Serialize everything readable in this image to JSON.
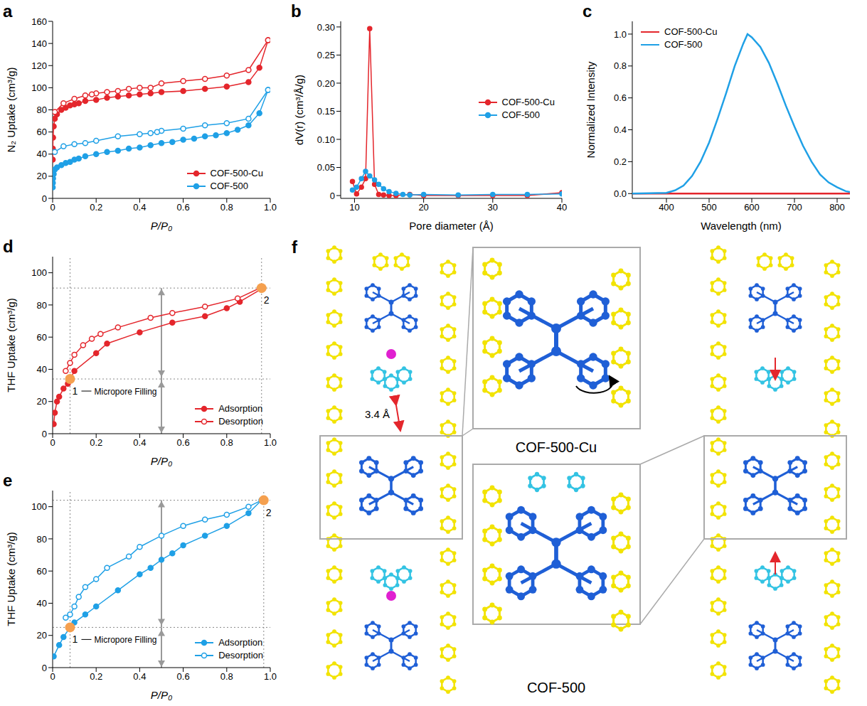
{
  "chart_data": [
    {
      "panel": "a",
      "type": "scatter",
      "x_label": "P/P₀",
      "y_label": "N₂ Uptake (cm³/g)",
      "xlim": [
        0,
        1
      ],
      "xticks": [
        0,
        0.2,
        0.4,
        0.6,
        0.8,
        {
          "value": 1,
          "label": "1.0"
        }
      ],
      "ylim": [
        0,
        160
      ],
      "yticks": [
        0,
        20,
        40,
        60,
        80,
        100,
        120,
        140,
        160
      ],
      "legend": "lower right",
      "series": [
        {
          "name": "COF-500-Cu",
          "color": "#e4262c",
          "adsorption": {
            "marker": "circle",
            "x": [
              0.0005,
              0.001,
              0.002,
              0.005,
              0.01,
              0.02,
              0.04,
              0.06,
              0.08,
              0.1,
              0.12,
              0.15,
              0.2,
              0.25,
              0.3,
              0.35,
              0.4,
              0.45,
              0.5,
              0.6,
              0.7,
              0.8,
              0.9,
              0.95,
              0.99
            ],
            "y": [
              35,
              45,
              55,
              65,
              72,
              76,
              80,
              82,
              84,
              85,
              86,
              88,
              89,
              91,
              92,
              93,
              94,
              95,
              96,
              97,
              99,
              101,
              105,
              118,
              143
            ]
          },
          "desorption": {
            "marker": "open_circle",
            "x": [
              0.99,
              0.9,
              0.8,
              0.7,
              0.6,
              0.5,
              0.45,
              0.4,
              0.35,
              0.3,
              0.25,
              0.2,
              0.18,
              0.15,
              0.1,
              0.05,
              0.01
            ],
            "y": [
              143,
              116,
              111,
              108,
              106,
              104,
              100,
              100,
              99,
              97,
              96,
              95,
              94,
              93,
              90,
              86,
              78
            ]
          }
        },
        {
          "name": "COF-500",
          "color": "#1fa0e6",
          "adsorption": {
            "marker": "circle",
            "x": [
              0.0005,
              0.001,
              0.002,
              0.005,
              0.01,
              0.02,
              0.04,
              0.06,
              0.08,
              0.1,
              0.12,
              0.15,
              0.2,
              0.25,
              0.3,
              0.35,
              0.4,
              0.45,
              0.5,
              0.55,
              0.6,
              0.65,
              0.7,
              0.75,
              0.8,
              0.85,
              0.9,
              0.95,
              0.99
            ],
            "y": [
              10,
              14,
              18,
              22,
              26,
              28,
              30,
              32,
              33,
              35,
              36,
              38,
              40,
              42,
              43,
              45,
              46,
              48,
              50,
              51,
              53,
              54,
              56,
              57,
              59,
              62,
              66,
              77,
              98
            ]
          },
          "desorption": {
            "marker": "open_circle",
            "x": [
              0.99,
              0.9,
              0.8,
              0.7,
              0.6,
              0.5,
              0.48,
              0.45,
              0.4,
              0.3,
              0.2,
              0.15,
              0.1,
              0.05,
              0.01
            ],
            "y": [
              98,
              72,
              68,
              66,
              63,
              61,
              60,
              59,
              58,
              56,
              52,
              50,
              49,
              47,
              42
            ]
          }
        }
      ]
    },
    {
      "panel": "b",
      "type": "scatter",
      "x_label": "Pore diameter (Å)",
      "y_label": "dV(r) (cm³/Å/g)",
      "xlim": [
        8,
        40
      ],
      "xticks": [
        10,
        20,
        30,
        40
      ],
      "ylim": [
        -0.005,
        0.31
      ],
      "yticks": [
        0,
        0.05,
        {
          "value": 0.1,
          "label": "0.10"
        },
        0.15,
        {
          "value": 0.2,
          "label": "0.20"
        },
        0.25,
        {
          "value": 0.3,
          "label": "0.30"
        }
      ],
      "legend": "right",
      "marker": "circle",
      "series": [
        {
          "name": "COF-500-Cu",
          "color": "#e4262c",
          "x": [
            9.7,
            10.3,
            11,
            11.6,
            12.2,
            12.9,
            13.5,
            14.2,
            15,
            16,
            18,
            20,
            25,
            30,
            35,
            40
          ],
          "y": [
            0.025,
            0.003,
            0.015,
            0.03,
            0.297,
            0.02,
            0.002,
            0.001,
            0,
            0,
            0.002,
            0,
            0,
            0,
            0,
            0.005
          ]
        },
        {
          "name": "COF-500",
          "color": "#1fa0e6",
          "x": [
            9.7,
            10.3,
            11,
            11.6,
            12.2,
            12.9,
            13.5,
            14.2,
            15,
            16,
            17,
            18,
            20,
            25,
            30,
            35,
            40
          ],
          "y": [
            0.01,
            0.015,
            0.03,
            0.043,
            0.035,
            0.028,
            0.02,
            0.012,
            0.007,
            0.004,
            0.002,
            0.001,
            0.002,
            0.001,
            0.002,
            0.002,
            0.003
          ]
        }
      ]
    },
    {
      "panel": "c",
      "type": "line",
      "x_label": "Wavelength (nm)",
      "y_label": "Normalized Intensity",
      "xlim": [
        320,
        830
      ],
      "xticks": [
        400,
        500,
        600,
        700,
        800
      ],
      "ylim": [
        -0.03,
        1.08
      ],
      "yticks": [
        {
          "value": 0,
          "label": "0.0"
        },
        0.2,
        0.4,
        0.6,
        0.8,
        {
          "value": 1,
          "label": "1.0"
        }
      ],
      "legend": "upper left",
      "marker": "none",
      "series": [
        {
          "name": "COF-500-Cu",
          "color": "#e4262c",
          "x": [
            320,
            400,
            500,
            600,
            700,
            800,
            830
          ],
          "y": [
            0,
            0,
            0,
            0,
            0,
            0,
            0
          ]
        },
        {
          "name": "COF-500",
          "color": "#1fa0e6",
          "x": [
            320,
            400,
            420,
            440,
            460,
            480,
            500,
            520,
            540,
            560,
            580,
            590,
            600,
            620,
            640,
            660,
            680,
            700,
            720,
            740,
            760,
            780,
            800,
            820,
            830
          ],
          "y": [
            0,
            0.005,
            0.02,
            0.05,
            0.11,
            0.2,
            0.32,
            0.47,
            0.63,
            0.8,
            0.94,
            1.0,
            0.98,
            0.92,
            0.82,
            0.69,
            0.55,
            0.42,
            0.3,
            0.2,
            0.12,
            0.07,
            0.04,
            0.015,
            0.01
          ]
        }
      ]
    },
    {
      "panel": "d",
      "type": "scatter",
      "x_label": "P/P₀",
      "y_label": "THF Uptake (cm³/g)",
      "xlim": [
        0,
        1
      ],
      "xticks": [
        0,
        0.2,
        0.4,
        0.6,
        0.8,
        {
          "value": 1,
          "label": "1.0"
        }
      ],
      "ylim": [
        0,
        110
      ],
      "yticks": [
        0,
        20,
        40,
        60,
        80,
        100
      ],
      "legend": "lower right",
      "series": [
        {
          "name": "Adsorption",
          "color": "#e4262c",
          "marker": "circle",
          "x": [
            0.005,
            0.01,
            0.02,
            0.03,
            0.05,
            0.07,
            0.1,
            0.2,
            0.25,
            0.4,
            0.55,
            0.7,
            0.8,
            0.86,
            0.96
          ],
          "y": [
            6,
            13,
            20,
            23,
            28,
            31,
            39,
            50,
            56,
            63,
            69,
            73,
            78,
            82,
            90
          ]
        },
        {
          "name": "Desorption",
          "color": "#e4262c",
          "marker": "open_circle",
          "x": [
            0.96,
            0.85,
            0.7,
            0.55,
            0.45,
            0.3,
            0.22,
            0.18,
            0.14,
            0.1,
            0.08,
            0.06
          ],
          "y": [
            91,
            84,
            79,
            75,
            72,
            66,
            62,
            59,
            55,
            49,
            44,
            39
          ]
        }
      ],
      "points": [
        {
          "label": "1",
          "x": 0.08,
          "y": 34,
          "color": "#f5a04f",
          "annotation": "Micropore Filling"
        },
        {
          "label": "2",
          "x": 0.96,
          "y": 90.5,
          "color": "#f5a04f"
        }
      ]
    },
    {
      "panel": "e",
      "type": "scatter",
      "x_label": "P/P₀",
      "y_label": "THF Uptake (cm³/g)",
      "xlim": [
        0,
        1
      ],
      "xticks": [
        0,
        0.2,
        0.4,
        0.6,
        0.8,
        {
          "value": 1,
          "label": "1.0"
        }
      ],
      "ylim": [
        0,
        110
      ],
      "yticks": [
        0,
        20,
        40,
        60,
        80,
        100
      ],
      "legend": "lower right",
      "series": [
        {
          "name": "Adsorption",
          "color": "#1fa0e6",
          "marker": "circle",
          "x": [
            0.005,
            0.03,
            0.05,
            0.08,
            0.1,
            0.15,
            0.2,
            0.3,
            0.4,
            0.45,
            0.5,
            0.55,
            0.6,
            0.7,
            0.8,
            0.9,
            0.96
          ],
          "y": [
            7,
            14,
            19,
            25,
            28,
            33,
            38,
            48,
            58,
            62,
            67,
            71,
            76,
            82,
            88,
            96,
            104
          ]
        },
        {
          "name": "Desorption",
          "color": "#1fa0e6",
          "marker": "open_circle",
          "x": [
            0.96,
            0.9,
            0.8,
            0.7,
            0.6,
            0.5,
            0.4,
            0.35,
            0.25,
            0.2,
            0.15,
            0.12,
            0.1,
            0.08,
            0.06
          ],
          "y": [
            104,
            100,
            95,
            92,
            88,
            82,
            75,
            69,
            62,
            55,
            50,
            44,
            38,
            33,
            31
          ]
        }
      ],
      "points": [
        {
          "label": "1",
          "x": 0.08,
          "y": 25,
          "color": "#f5a04f",
          "annotation": "Micropore Filling"
        },
        {
          "label": "2",
          "x": 0.97,
          "y": 104,
          "color": "#f5a04f"
        }
      ]
    }
  ],
  "diagram": {
    "panel": "f",
    "distance_label": "3.4 Å",
    "insets": [
      "COF-500-Cu",
      "COF-500"
    ]
  }
}
